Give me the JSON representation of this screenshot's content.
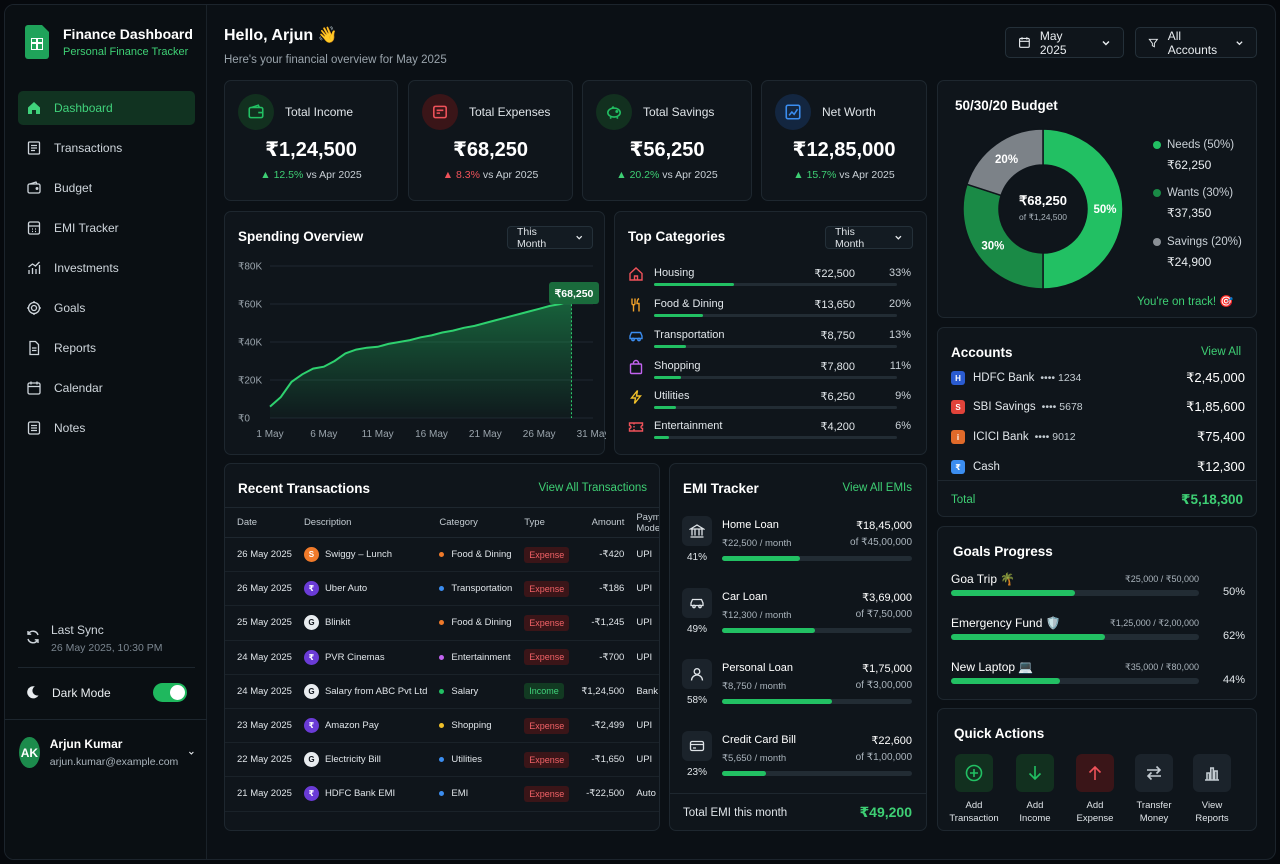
{
  "brand": {
    "title": "Finance Dashboard",
    "subtitle": "Personal Finance Tracker"
  },
  "nav": [
    "Dashboard",
    "Transactions",
    "Budget",
    "EMI Tracker",
    "Investments",
    "Goals",
    "Reports",
    "Calendar",
    "Notes"
  ],
  "sync": {
    "title": "Last Sync",
    "time": "26 May 2025, 10:30 PM"
  },
  "dark_mode": {
    "label": "Dark Mode",
    "on": true
  },
  "user": {
    "initials": "AK",
    "name": "Arjun Kumar",
    "email": "arjun.kumar@example.com"
  },
  "header": {
    "greeting": "Hello, Arjun 👋",
    "subtitle": "Here's your financial overview for May 2025",
    "month": "May 2025",
    "accounts": "All Accounts"
  },
  "kpis": [
    {
      "label": "Total Income",
      "value": "₹1,24,500",
      "delta": "12.5%",
      "dir": "up",
      "vs": "vs Apr 2025",
      "color": "#1fb85e"
    },
    {
      "label": "Total Expenses",
      "value": "₹68,250",
      "delta": "8.3%",
      "dir": "down",
      "vs": "vs Apr 2025",
      "color": "#f0525a"
    },
    {
      "label": "Total Savings",
      "value": "₹56,250",
      "delta": "20.2%",
      "dir": "up",
      "vs": "vs Apr 2025",
      "color": "#1fb85e"
    },
    {
      "label": "Net Worth",
      "value": "₹12,85,000",
      "delta": "15.7%",
      "dir": "up",
      "vs": "vs Apr 2025",
      "color": "#3b8df0"
    }
  ],
  "spending": {
    "title": "Spending Overview",
    "period": "This Month",
    "callout": "₹68,250",
    "chart_data": {
      "type": "area",
      "title": "Spending Overview",
      "y_ticks": [
        "₹80K",
        "₹60K",
        "₹40K",
        "₹20K",
        "₹0"
      ],
      "x_ticks": [
        "1 May",
        "6 May",
        "11 May",
        "16 May",
        "21 May",
        "26 May",
        "31 May"
      ],
      "ylim": [
        0,
        80000
      ],
      "x": [
        1,
        2,
        3,
        4,
        5,
        6,
        7,
        8,
        9,
        10,
        11,
        12,
        13,
        14,
        15,
        16,
        17,
        18,
        19,
        20,
        21,
        22,
        23,
        24,
        25,
        26,
        27,
        28,
        29
      ],
      "values": [
        6000,
        11000,
        19000,
        23000,
        26000,
        27000,
        30000,
        34000,
        36000,
        37000,
        37500,
        39000,
        40000,
        41000,
        42500,
        43500,
        45000,
        46000,
        47500,
        48500,
        50000,
        51500,
        53000,
        54500,
        56000,
        57500,
        59000,
        60000,
        62000
      ]
    }
  },
  "categories": {
    "title": "Top Categories",
    "period": "This Month",
    "items": [
      {
        "name": "Housing",
        "amount": "₹22,500",
        "pct": "33%",
        "frac": 0.33,
        "icon": "house-icon",
        "color": "#f0525a"
      },
      {
        "name": "Food & Dining",
        "amount": "₹13,650",
        "pct": "20%",
        "frac": 0.2,
        "icon": "fork-knife-icon",
        "color": "#f0a12a"
      },
      {
        "name": "Transportation",
        "amount": "₹8,750",
        "pct": "13%",
        "frac": 0.13,
        "icon": "car-icon",
        "color": "#3b8df0"
      },
      {
        "name": "Shopping",
        "amount": "₹7,800",
        "pct": "11%",
        "frac": 0.11,
        "icon": "shopping-bag-icon",
        "color": "#c263f0"
      },
      {
        "name": "Utilities",
        "amount": "₹6,250",
        "pct": "9%",
        "frac": 0.09,
        "icon": "lightning-icon",
        "color": "#f0c02a"
      },
      {
        "name": "Entertainment",
        "amount": "₹4,200",
        "pct": "6%",
        "frac": 0.06,
        "icon": "ticket-icon",
        "color": "#f0525a"
      }
    ]
  },
  "transactions": {
    "title": "Recent Transactions",
    "view_all": "View All Transactions",
    "columns": [
      "Date",
      "Description",
      "Category",
      "Type",
      "Amount",
      "Payment Mode"
    ],
    "rows": [
      {
        "date": "26 May 2025",
        "desc": "Swiggy – Lunch",
        "cat": "Food & Dining",
        "cat_color": "#f07a2a",
        "type": "Expense",
        "amount": "-₹420",
        "mode": "UPI",
        "ico": "S",
        "ico_color": "#f07a2a"
      },
      {
        "date": "26 May 2025",
        "desc": "Uber Auto",
        "cat": "Transportation",
        "cat_color": "#3b8df0",
        "type": "Expense",
        "amount": "-₹186",
        "mode": "UPI",
        "ico": "₹",
        "ico_color": "#6a3bd6"
      },
      {
        "date": "25 May 2025",
        "desc": "Blinkit",
        "cat": "Food & Dining",
        "cat_color": "#f07a2a",
        "type": "Expense",
        "amount": "-₹1,245",
        "mode": "UPI",
        "ico": "G",
        "ico_color": "#e8ecef"
      },
      {
        "date": "24 May 2025",
        "desc": "PVR Cinemas",
        "cat": "Entertainment",
        "cat_color": "#c263f0",
        "type": "Expense",
        "amount": "-₹700",
        "mode": "UPI",
        "ico": "₹",
        "ico_color": "#6a3bd6"
      },
      {
        "date": "24 May 2025",
        "desc": "Salary from ABC Pvt Ltd",
        "cat": "Salary",
        "cat_color": "#22c063",
        "type": "Income",
        "amount": "₹1,24,500",
        "mode": "Bank Transfer",
        "ico": "G",
        "ico_color": "#e8ecef"
      },
      {
        "date": "23 May 2025",
        "desc": "Amazon Pay",
        "cat": "Shopping",
        "cat_color": "#f0c02a",
        "type": "Expense",
        "amount": "-₹2,499",
        "mode": "UPI",
        "ico": "₹",
        "ico_color": "#6a3bd6"
      },
      {
        "date": "22 May 2025",
        "desc": "Electricity Bill",
        "cat": "Utilities",
        "cat_color": "#3b8df0",
        "type": "Expense",
        "amount": "-₹1,650",
        "mode": "UPI",
        "ico": "G",
        "ico_color": "#e8ecef"
      },
      {
        "date": "21 May 2025",
        "desc": "HDFC Bank EMI",
        "cat": "EMI",
        "cat_color": "#3b8df0",
        "type": "Expense",
        "amount": "-₹22,500",
        "mode": "Auto Debit",
        "ico": "₹",
        "ico_color": "#6a3bd6"
      }
    ]
  },
  "emi": {
    "title": "EMI Tracker",
    "view_all": "View All EMIs",
    "items": [
      {
        "name": "Home Loan",
        "amount": "₹18,45,000",
        "monthly": "₹22,500 / month",
        "of": "of ₹45,00,000",
        "pct": "41%",
        "frac": 0.41,
        "icon": "bank-icon"
      },
      {
        "name": "Car Loan",
        "amount": "₹3,69,000",
        "monthly": "₹12,300 / month",
        "of": "of ₹7,50,000",
        "pct": "49%",
        "frac": 0.49,
        "icon": "car-icon"
      },
      {
        "name": "Personal Loan",
        "amount": "₹1,75,000",
        "monthly": "₹8,750 / month",
        "of": "of ₹3,00,000",
        "pct": "58%",
        "frac": 0.58,
        "icon": "person-icon"
      },
      {
        "name": "Credit Card Bill",
        "amount": "₹22,600",
        "monthly": "₹5,650 / month",
        "of": "of ₹1,00,000",
        "pct": "23%",
        "frac": 0.23,
        "icon": "credit-card-icon"
      }
    ],
    "total_label": "Total EMI this month",
    "total_value": "₹49,200"
  },
  "budget": {
    "title": "50/30/20 Budget",
    "center_value": "₹68,250",
    "center_sub": "of ₹1,24,500",
    "chart_data": {
      "type": "pie",
      "labels": [
        "Needs",
        "Wants",
        "Savings"
      ],
      "values": [
        50,
        30,
        20
      ],
      "slice_labels": [
        "50%",
        "30%",
        "20%"
      ],
      "colors": [
        "#22c063",
        "#1a8a46",
        "#7c8288"
      ]
    },
    "legend": [
      {
        "name": "Needs (50%)",
        "value": "₹62,250",
        "color": "#22c063"
      },
      {
        "name": "Wants (30%)",
        "value": "₹37,350",
        "color": "#1a8a46"
      },
      {
        "name": "Savings (20%)",
        "value": "₹24,900",
        "color": "#8a9096"
      }
    ],
    "status": "You're on track! 🎯"
  },
  "accounts": {
    "title": "Accounts",
    "view_all": "View All",
    "items": [
      {
        "name": "HDFC Bank",
        "mask": "•••• 1234",
        "balance": "₹2,45,000",
        "color": "#2a5bd0",
        "ico": "H"
      },
      {
        "name": "SBI Savings",
        "mask": "•••• 5678",
        "balance": "₹1,85,600",
        "color": "#e0433a",
        "ico": "S"
      },
      {
        "name": "ICICI Bank",
        "mask": "•••• 9012",
        "balance": "₹75,400",
        "color": "#e06a2a",
        "ico": "i"
      },
      {
        "name": "Cash",
        "mask": "",
        "balance": "₹12,300",
        "color": "#3b8df0",
        "ico": "₹"
      }
    ],
    "total_label": "Total",
    "total_value": "₹5,18,300"
  },
  "goals": {
    "title": "Goals Progress",
    "items": [
      {
        "name": "Goa Trip 🌴",
        "of": "₹25,000 / ₹50,000",
        "pct": "50%",
        "frac": 0.5
      },
      {
        "name": "Emergency Fund 🛡️",
        "of": "₹1,25,000 / ₹2,00,000",
        "pct": "62%",
        "frac": 0.62
      },
      {
        "name": "New Laptop 💻",
        "of": "₹35,000 / ₹80,000",
        "pct": "44%",
        "frac": 0.44
      }
    ]
  },
  "quick_actions": {
    "title": "Quick Actions",
    "items": [
      {
        "label": "Add\nTransaction",
        "icon": "plus-circle-icon",
        "color": "#22c063"
      },
      {
        "label": "Add\nIncome",
        "icon": "arrow-down-icon",
        "color": "#22c063"
      },
      {
        "label": "Add\nExpense",
        "icon": "arrow-up-icon",
        "color": "#f0525a"
      },
      {
        "label": "Transfer\nMoney",
        "icon": "transfer-icon",
        "color": "#c3cbd1"
      },
      {
        "label": "View\nReports",
        "icon": "bar-chart-icon",
        "color": "#c3cbd1"
      }
    ]
  }
}
